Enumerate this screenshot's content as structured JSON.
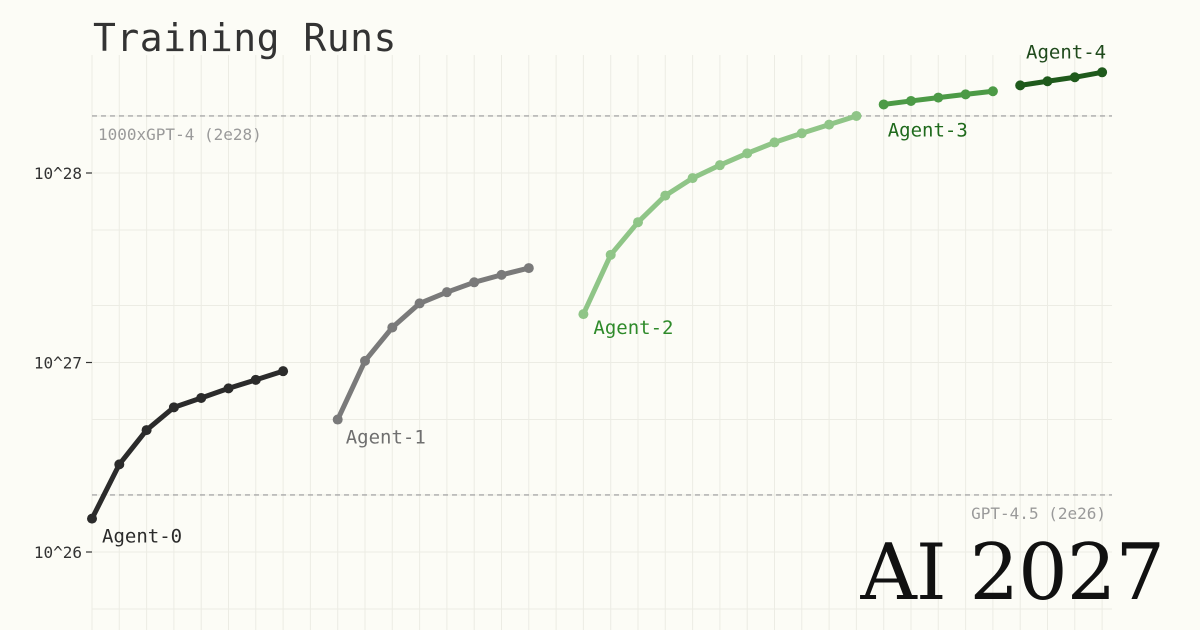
{
  "title": "Training Runs",
  "brand": "AI 2027",
  "chart_data": {
    "type": "line",
    "title": "Training Runs",
    "yscale": "log",
    "ylim": [
      4e+25,
      1.3e+29
    ],
    "y_ticks": [
      {
        "value": 1e+26,
        "label": "10^26"
      },
      {
        "value": 1e+27,
        "label": "10^27"
      },
      {
        "value": 1e+28,
        "label": "10^28"
      }
    ],
    "grid": true,
    "reference_lines": [
      {
        "value": 2e+28,
        "label": "1000xGPT-4 (2e28)",
        "color": "#a8a8a8"
      },
      {
        "value": 2e+26,
        "label": "GPT-4.5 (2e26)",
        "color": "#a8a8a8"
      }
    ],
    "series": [
      {
        "name": "Agent-0",
        "color": "#2b2b2b",
        "values": [
          1.5e+26,
          2.9e+26,
          4.4e+26,
          5.8e+26,
          6.5e+26,
          7.3e+26,
          8.1e+26,
          9e+26
        ]
      },
      {
        "name": "Agent-1",
        "color": "#7a7a7a",
        "values": [
          5e+26,
          1.02e+27,
          1.53e+27,
          2.05e+27,
          2.35e+27,
          2.65e+27,
          2.9e+27,
          3.15e+27
        ]
      },
      {
        "name": "Agent-2",
        "color": "#8fc587",
        "values": [
          1.8e+27,
          3.7e+27,
          5.5e+27,
          7.6e+27,
          9.4e+27,
          1.1e+28,
          1.27e+28,
          1.45e+28,
          1.62e+28,
          1.8e+28,
          2e+28
        ]
      },
      {
        "name": "Agent-3",
        "color": "#4c9a46",
        "values": [
          2.3e+28,
          2.4e+28,
          2.5e+28,
          2.6e+28,
          2.7e+28
        ]
      },
      {
        "name": "Agent-4",
        "color": "#1f5a1c",
        "values": [
          2.9e+28,
          3.05e+28,
          3.2e+28,
          3.4e+28
        ]
      }
    ]
  }
}
